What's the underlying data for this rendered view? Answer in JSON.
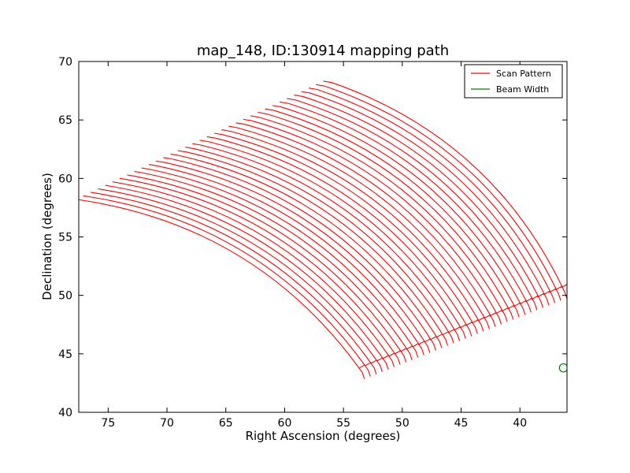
{
  "chart_data": {
    "type": "line",
    "title": "map_148, ID:130914 mapping path",
    "xlabel": "Right Ascension (degrees)",
    "ylabel": "Declination (degrees)",
    "xlim": [
      77.5,
      36
    ],
    "ylim": [
      40,
      70
    ],
    "x_inverted": true,
    "xticks": [
      75,
      70,
      65,
      60,
      55,
      50,
      45,
      40
    ],
    "yticks": [
      40,
      45,
      50,
      55,
      60,
      65,
      70
    ],
    "grid": false,
    "legend_position": "top-right",
    "legend": [
      {
        "label": "Scan Pattern",
        "color": "#ff0000",
        "series": "scan_pattern"
      },
      {
        "label": "Beam Width",
        "color": "#008000",
        "series": "beam_width"
      }
    ],
    "scan_pattern": {
      "color": "#ff0000",
      "n_sweeps": 35,
      "first_sweep": {
        "start": [
          77.0,
          58.1
        ],
        "end": [
          53.4,
          43.4
        ]
      },
      "last_sweep": {
        "start": [
          56.0,
          68.2
        ],
        "end": [
          36.2,
          50.3
        ]
      },
      "sweep_curvature": 0.42,
      "turn_notch_size": 0.6
    },
    "beam_width": {
      "color": "#008000",
      "center": [
        36.3,
        43.8
      ],
      "diameter_deg": 0.7
    }
  }
}
